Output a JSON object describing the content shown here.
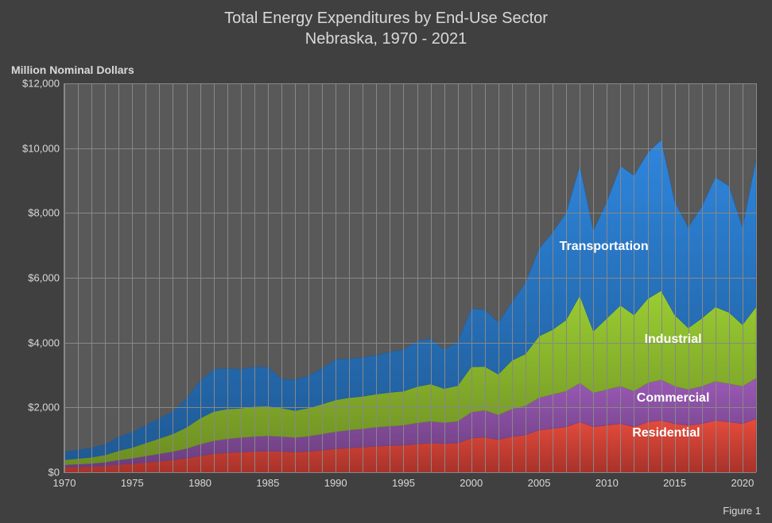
{
  "chart": {
    "type": "area",
    "title_line1": "Total Energy Expenditures by End-Use Sector",
    "title_line2": "Nebraska, 1970 - 2021",
    "y_axis_title": "Million Nominal Dollars",
    "figure_label": "Figure 1",
    "background_color": "#404040",
    "plot_background_color": "#595959",
    "grid_color": "#888888",
    "text_color": "#d9d9d9",
    "title_fontsize": 20,
    "axis_label_fontsize": 13,
    "y_axis_title_fontsize": 14,
    "series_label_fontsize": 16,
    "xlim": [
      1970,
      2021
    ],
    "ylim": [
      0,
      12000
    ],
    "ytick_step": 2000,
    "y_ticks": [
      0,
      2000,
      4000,
      6000,
      8000,
      10000,
      12000
    ],
    "y_tick_labels": [
      "$0",
      "$2,000",
      "$4,000",
      "$6,000",
      "$8,000",
      "$10,000",
      "$12,000"
    ],
    "x_ticks": [
      1970,
      1975,
      1980,
      1985,
      1990,
      1995,
      2000,
      2005,
      2010,
      2015,
      2020
    ],
    "x_tick_labels": [
      "1970",
      "1975",
      "1980",
      "1985",
      "1990",
      "1995",
      "2000",
      "2005",
      "2010",
      "2015",
      "2020"
    ],
    "years": [
      1970,
      1971,
      1972,
      1973,
      1974,
      1975,
      1976,
      1977,
      1978,
      1979,
      1980,
      1981,
      1982,
      1983,
      1984,
      1985,
      1986,
      1987,
      1988,
      1989,
      1990,
      1991,
      1992,
      1993,
      1994,
      1995,
      1996,
      1997,
      1998,
      1999,
      2000,
      2001,
      2002,
      2003,
      2004,
      2005,
      2006,
      2007,
      2008,
      2009,
      2010,
      2011,
      2012,
      2013,
      2014,
      2015,
      2016,
      2017,
      2018,
      2019,
      2020,
      2021
    ],
    "series": [
      {
        "name": "Residential",
        "color_top": "#e74c3c",
        "color_bottom": "#a8322a",
        "label_pos": {
          "x_pct": 87,
          "y_pct": 90
        },
        "values": [
          150,
          160,
          170,
          190,
          230,
          260,
          300,
          340,
          380,
          430,
          500,
          570,
          600,
          620,
          640,
          650,
          640,
          620,
          640,
          680,
          720,
          750,
          770,
          800,
          820,
          830,
          870,
          900,
          880,
          900,
          1050,
          1080,
          1000,
          1100,
          1150,
          1300,
          1350,
          1400,
          1550,
          1400,
          1450,
          1500,
          1400,
          1550,
          1600,
          1500,
          1450,
          1500,
          1600,
          1550,
          1500,
          1650
        ]
      },
      {
        "name": "Commercial",
        "color_top": "#9b59b6",
        "color_bottom": "#6a3d7d",
        "label_pos": {
          "x_pct": 88,
          "y_pct": 81
        },
        "values": [
          80,
          90,
          100,
          120,
          150,
          170,
          200,
          230,
          260,
          300,
          360,
          400,
          430,
          450,
          460,
          470,
          460,
          450,
          470,
          500,
          530,
          550,
          570,
          590,
          600,
          620,
          650,
          670,
          650,
          670,
          800,
          830,
          770,
          850,
          900,
          1000,
          1050,
          1100,
          1200,
          1050,
          1100,
          1150,
          1100,
          1200,
          1250,
          1150,
          1100,
          1150,
          1200,
          1180,
          1150,
          1250
        ]
      },
      {
        "name": "Industrial",
        "color_top": "#9acd32",
        "color_bottom": "#6c8d23",
        "label_pos": {
          "x_pct": 88,
          "y_pct": 66
        },
        "values": [
          150,
          170,
          190,
          220,
          280,
          330,
          400,
          470,
          540,
          650,
          800,
          900,
          920,
          900,
          930,
          920,
          880,
          830,
          870,
          920,
          980,
          1000,
          1000,
          1020,
          1040,
          1050,
          1120,
          1150,
          1050,
          1100,
          1400,
          1350,
          1250,
          1500,
          1600,
          1900,
          2000,
          2200,
          2700,
          1900,
          2200,
          2500,
          2350,
          2600,
          2750,
          2200,
          1900,
          2100,
          2300,
          2200,
          1900,
          2200
        ]
      },
      {
        "name": "Transportation",
        "color_top": "#2e86de",
        "color_bottom": "#1f5a94",
        "label_pos": {
          "x_pct": 78,
          "y_pct": 42
        },
        "values": [
          250,
          270,
          290,
          330,
          430,
          480,
          550,
          620,
          700,
          900,
          1150,
          1300,
          1250,
          1200,
          1220,
          1200,
          900,
          950,
          1000,
          1100,
          1250,
          1200,
          1200,
          1200,
          1250,
          1280,
          1400,
          1400,
          1200,
          1350,
          1800,
          1750,
          1600,
          1800,
          2200,
          2700,
          3000,
          3300,
          4000,
          3100,
          3600,
          4300,
          4300,
          4500,
          4650,
          3500,
          3100,
          3450,
          4000,
          3900,
          3000,
          4550
        ]
      }
    ]
  }
}
